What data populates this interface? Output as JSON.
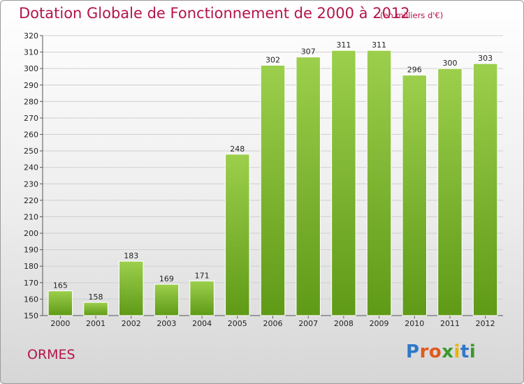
{
  "header": {
    "title": "Dotation Globale de Fonctionnement de 2000 à 2012",
    "unit": "(en milliers d'€)"
  },
  "footer": {
    "commune": "ORMES",
    "logo_letters": [
      "P",
      "r",
      "o",
      "x",
      "i",
      "t",
      "i"
    ],
    "logo_colors": [
      "#2e78c9",
      "#e05a1c",
      "#e05a1c",
      "#3a9a2a",
      "#e8b400",
      "#2e78c9",
      "#3a9a2a"
    ]
  },
  "colors": {
    "bar_light": "#9ccf4c",
    "bar_dark": "#5f9a17",
    "grid": "#cfcfcf",
    "accent": "#b5144a"
  },
  "chart_data": {
    "type": "bar",
    "title": "Dotation Globale de Fonctionnement de 2000 à 2012",
    "subtitle": "(en milliers d'€)",
    "categories": [
      "2000",
      "2001",
      "2002",
      "2003",
      "2004",
      "2005",
      "2006",
      "2007",
      "2008",
      "2009",
      "2010",
      "2011",
      "2012"
    ],
    "values": [
      165,
      158,
      183,
      169,
      171,
      248,
      302,
      307,
      311,
      311,
      296,
      300,
      303
    ],
    "ylim": [
      150,
      320
    ],
    "yticks": [
      150,
      160,
      170,
      180,
      190,
      200,
      210,
      220,
      230,
      240,
      250,
      260,
      270,
      280,
      290,
      300,
      310,
      320
    ],
    "grid": true,
    "legend": "none"
  }
}
